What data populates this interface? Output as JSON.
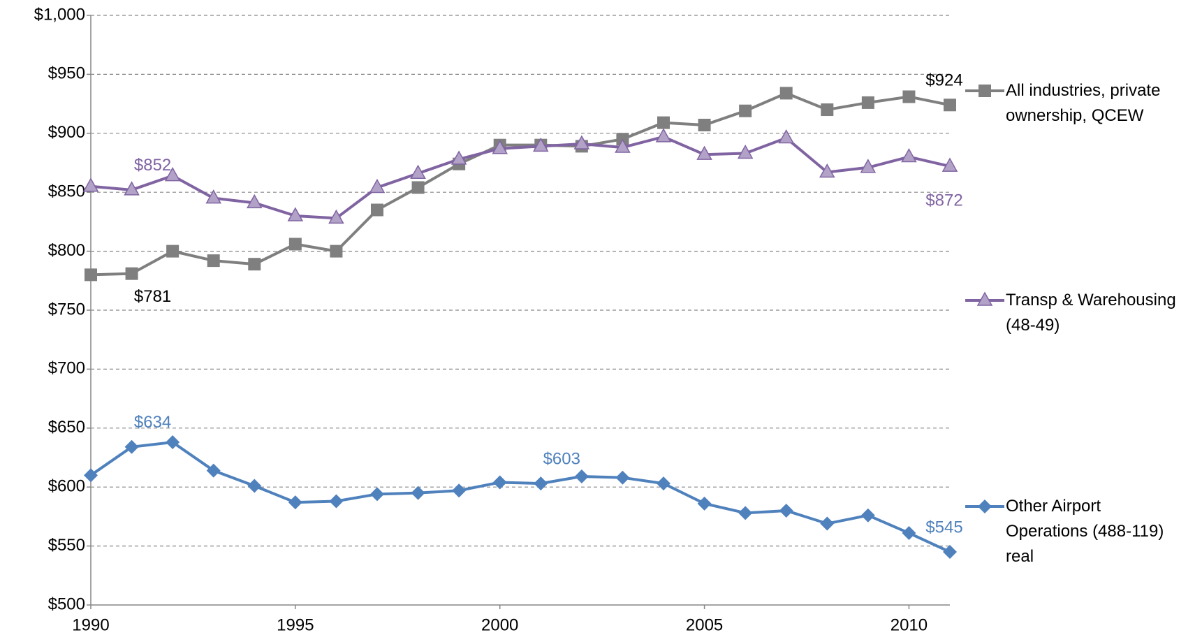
{
  "chart_data": {
    "type": "line",
    "x": [
      1990,
      1991,
      1992,
      1993,
      1994,
      1995,
      1996,
      1997,
      1998,
      1999,
      2000,
      2001,
      2002,
      2003,
      2004,
      2005,
      2006,
      2007,
      2008,
      2009,
      2010,
      2011
    ],
    "xlim": [
      1990,
      2011
    ],
    "xticks": [
      1990,
      1995,
      2000,
      2005,
      2010
    ],
    "ylim": [
      500,
      1000
    ],
    "yticks": [
      {
        "value": 500,
        "label": "$500"
      },
      {
        "value": 550,
        "label": "$550"
      },
      {
        "value": 600,
        "label": "$600"
      },
      {
        "value": 650,
        "label": "$650"
      },
      {
        "value": 700,
        "label": "$700"
      },
      {
        "value": 750,
        "label": "$750"
      },
      {
        "value": 800,
        "label": "$800"
      },
      {
        "value": 850,
        "label": "$850"
      },
      {
        "value": 900,
        "label": "$900"
      },
      {
        "value": 950,
        "label": "$950"
      },
      {
        "value": 1000,
        "label": "$1,000"
      }
    ],
    "grid": true,
    "legend": "right",
    "series": [
      {
        "name": "All industries, private ownership, QCEW",
        "color": "#7f7f7f",
        "marker": "square",
        "values": [
          780,
          781,
          800,
          792,
          789,
          806,
          800,
          835,
          854,
          874,
          890,
          890,
          889,
          895,
          909,
          907,
          919,
          934,
          920,
          926,
          931,
          924
        ],
        "value_labels": [
          null,
          "$781",
          null,
          null,
          null,
          null,
          null,
          null,
          null,
          null,
          null,
          null,
          null,
          null,
          null,
          null,
          null,
          null,
          null,
          null,
          null,
          "$924"
        ]
      },
      {
        "name": "Transp & Warehousing (48-49)",
        "color": "#8064a2",
        "marker": "triangle",
        "values": [
          855,
          852,
          864,
          845,
          841,
          830,
          828,
          854,
          866,
          878,
          887,
          889,
          891,
          888,
          897,
          882,
          883,
          896,
          867,
          871,
          880,
          872
        ],
        "value_labels": [
          null,
          "$852",
          null,
          null,
          null,
          null,
          null,
          null,
          null,
          null,
          null,
          null,
          null,
          null,
          null,
          null,
          null,
          null,
          null,
          null,
          null,
          "$872"
        ]
      },
      {
        "name": "Other Airport Operations (488-119) real",
        "color": "#4f81bd",
        "marker": "diamond",
        "values": [
          610,
          634,
          638,
          614,
          601,
          587,
          588,
          594,
          595,
          597,
          604,
          603,
          609,
          608,
          603,
          586,
          578,
          580,
          569,
          576,
          561,
          545
        ],
        "value_labels": [
          null,
          "$634",
          null,
          null,
          null,
          null,
          null,
          null,
          null,
          null,
          null,
          "$603",
          null,
          null,
          null,
          null,
          null,
          null,
          null,
          null,
          null,
          "$545"
        ]
      }
    ]
  }
}
